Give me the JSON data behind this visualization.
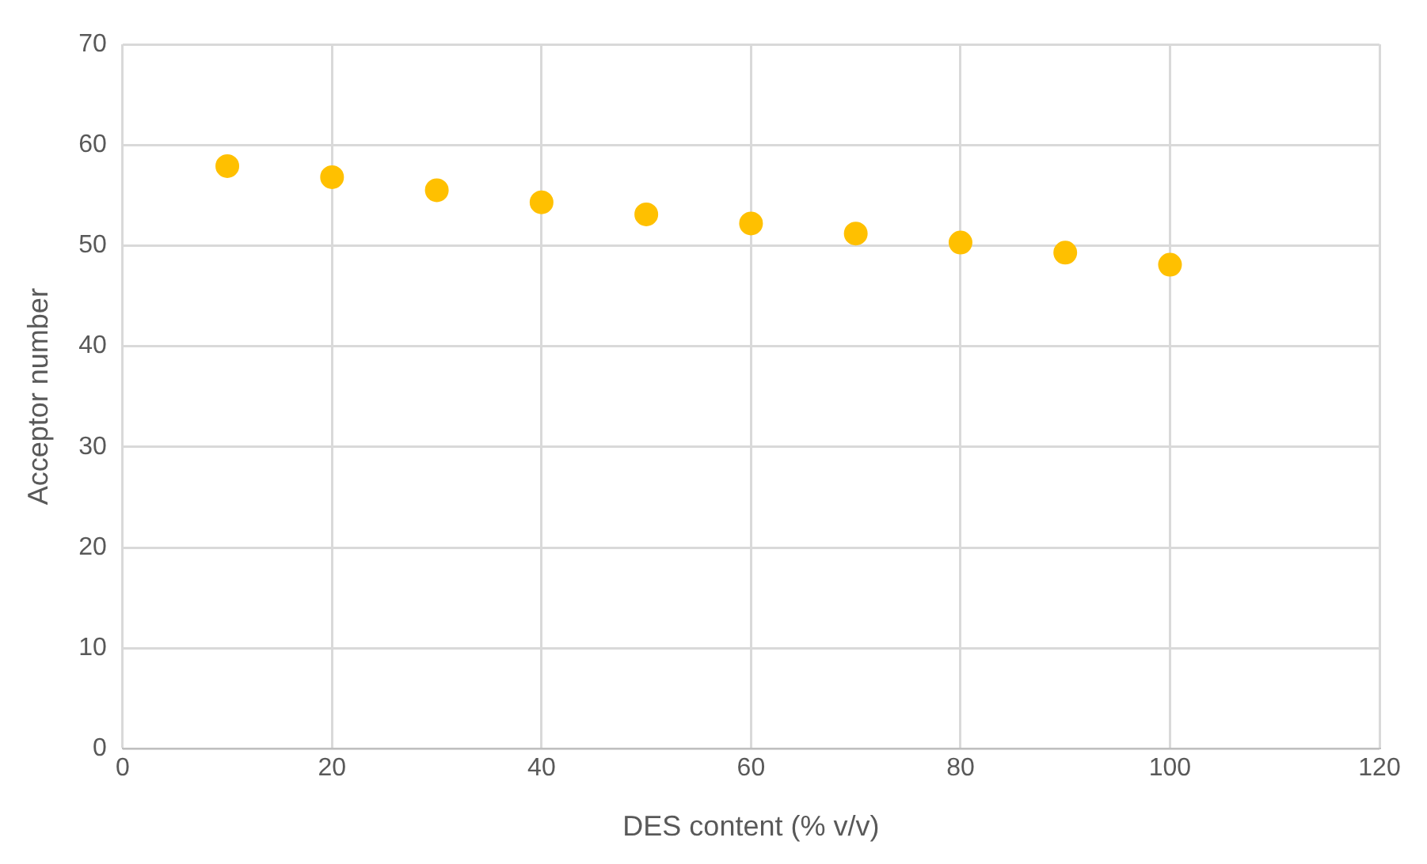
{
  "chart_data": {
    "type": "scatter",
    "xlabel": "DES content (% v/v)",
    "ylabel": "Acceptor number",
    "x": [
      10,
      20,
      30,
      40,
      50,
      60,
      70,
      80,
      90,
      100
    ],
    "series": [
      {
        "color": "#ffc000",
        "values": [
          57.9,
          56.8,
          55.5,
          54.3,
          53.1,
          52.2,
          51.2,
          50.3,
          49.3,
          48.1
        ]
      }
    ],
    "xlim": [
      0,
      120
    ],
    "xticks": [
      0,
      20,
      40,
      60,
      80,
      100,
      120
    ],
    "ylim": [
      0,
      70
    ],
    "yticks": [
      0,
      10,
      20,
      30,
      40,
      50,
      60,
      70
    ],
    "grid": true,
    "legend": false,
    "marker": "circle"
  }
}
